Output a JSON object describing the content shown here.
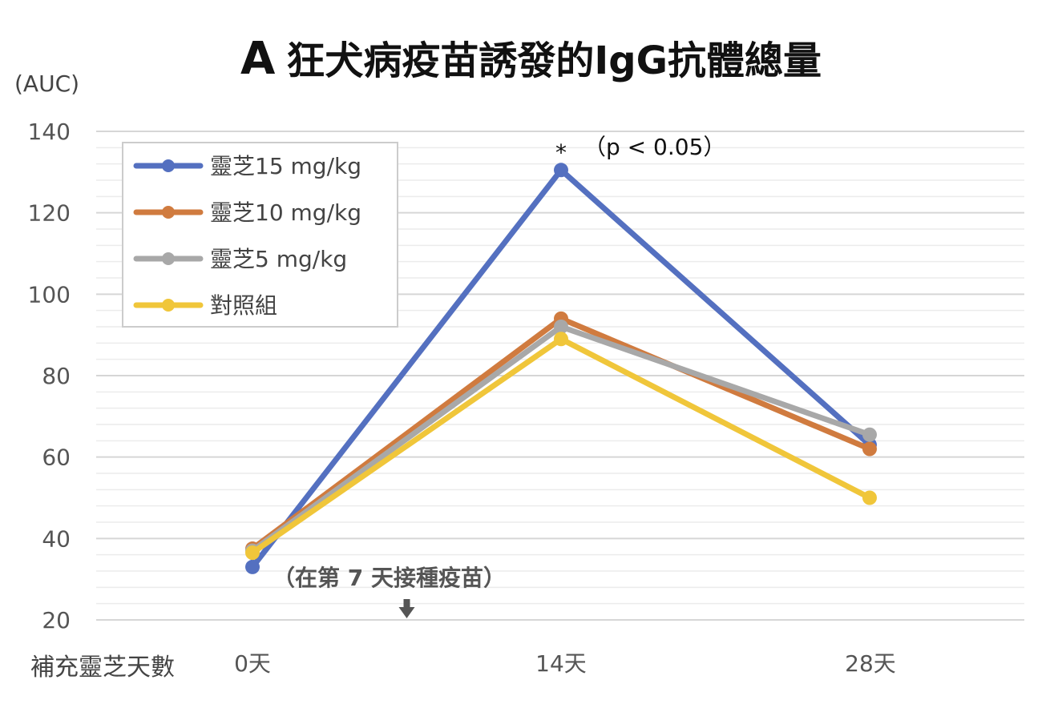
{
  "title": {
    "letter": "A",
    "text": "狂犬病疫苗誘發的IgG抗體總量"
  },
  "y_unit": "(AUC)",
  "x_caption": "補充靈芝天數",
  "annotations": {
    "significance_star": "*",
    "significance_text": "（p < 0.05）",
    "vaccination_note": "（在第 7 天接種疫苗）"
  },
  "chart_data": {
    "type": "line",
    "categories": [
      "0天",
      "14天",
      "28天"
    ],
    "yticks": [
      20,
      40,
      60,
      80,
      100,
      120,
      140
    ],
    "ylim": [
      20,
      140
    ],
    "minor_grid_step": 4,
    "grid": true,
    "legend_position": "top-left",
    "vaccination_marker_day": 7,
    "series": [
      {
        "name": "靈芝15 mg/kg",
        "color": "#5470C0",
        "values": [
          33,
          130.5,
          63
        ]
      },
      {
        "name": "靈芝10 mg/kg",
        "color": "#D07B3F",
        "values": [
          37.5,
          94,
          62
        ]
      },
      {
        "name": "靈芝5 mg/kg",
        "color": "#A8A8A8",
        "values": [
          37,
          92,
          65.5
        ]
      },
      {
        "name": "對照組",
        "color": "#F0C63A",
        "values": [
          36.5,
          89,
          50
        ]
      }
    ]
  }
}
